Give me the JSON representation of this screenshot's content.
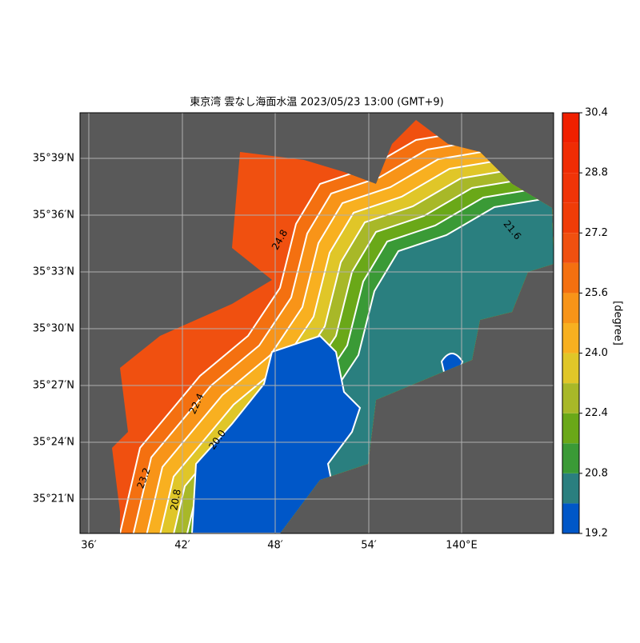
{
  "map": {
    "title": "東京湾 雲なし海面水温 2023/05/23 13:00 (GMT+9)",
    "lon_labels": [
      "36′",
      "42′",
      "48′",
      "54′",
      "140°E"
    ],
    "lat_labels": [
      "35°39′N",
      "35°36′N",
      "35°33′N",
      "35°30′N",
      "35°27′N",
      "35°24′N",
      "35°21′N"
    ],
    "colorbar": {
      "label": "[degree]",
      "levels": [
        19.2,
        20.0,
        20.8,
        21.6,
        22.4,
        23.2,
        24.0,
        24.8,
        25.6,
        26.4,
        27.2,
        28.0,
        28.8,
        29.6,
        30.4
      ],
      "colors": [
        "#0057c8",
        "#2a7f7f",
        "#3a9a36",
        "#6aa818",
        "#a8b828",
        "#e0c628",
        "#f8b020",
        "#f89418",
        "#f47010",
        "#f05010",
        "#f03c08",
        "#f03408",
        "#f02c04",
        "#f02000"
      ],
      "ticks": [
        19.2,
        20.8,
        22.4,
        {
          "value": 24.0,
          "label": "24.0"
        },
        25.6,
        27.2,
        28.8,
        30.4
      ]
    },
    "contour_labels": [
      "24.8",
      "22.4",
      "20.0",
      "20.8",
      "21.6",
      "23.2"
    ]
  }
}
